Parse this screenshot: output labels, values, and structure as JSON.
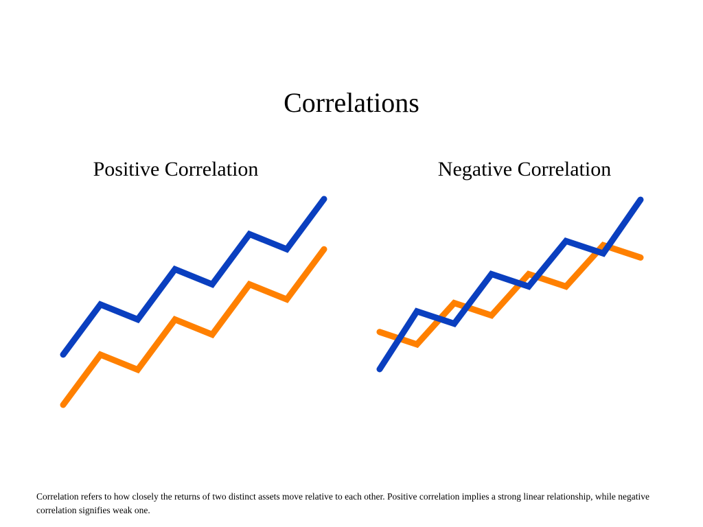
{
  "slide": {
    "title": "Correlations",
    "caption": "Correlation refers to how closely the returns of  two distinct assets move  relative to each other.  Positive correlation implies a strong linear relationship, while negative correlation signifies weak one."
  },
  "colors": {
    "blue": "#0a3fbf",
    "orange": "#ff8000"
  },
  "chart_data": [
    {
      "type": "line",
      "title": "Positive Correlation",
      "x": [
        0,
        1,
        2,
        3,
        4,
        5,
        6,
        7
      ],
      "series": [
        {
          "color": "blue",
          "values": [
            1.0,
            2.0,
            1.7,
            2.7,
            2.4,
            3.4,
            3.1,
            4.1
          ]
        },
        {
          "color": "orange",
          "values": [
            0.0,
            1.0,
            0.7,
            1.7,
            1.4,
            2.4,
            2.1,
            3.1
          ]
        }
      ],
      "ylim": [
        0,
        4.1
      ]
    },
    {
      "type": "line",
      "title": "Negative Correlation",
      "x": [
        0,
        1,
        2,
        3,
        4,
        5,
        6,
        7
      ],
      "series": [
        {
          "color": "orange",
          "values": [
            0.9,
            0.6,
            1.6,
            1.3,
            2.3,
            2.0,
            3.0,
            2.7
          ]
        },
        {
          "color": "blue",
          "values": [
            0.0,
            1.4,
            1.1,
            2.3,
            2.0,
            3.1,
            2.8,
            4.1
          ]
        }
      ],
      "ylim": [
        0,
        4.1
      ]
    }
  ]
}
